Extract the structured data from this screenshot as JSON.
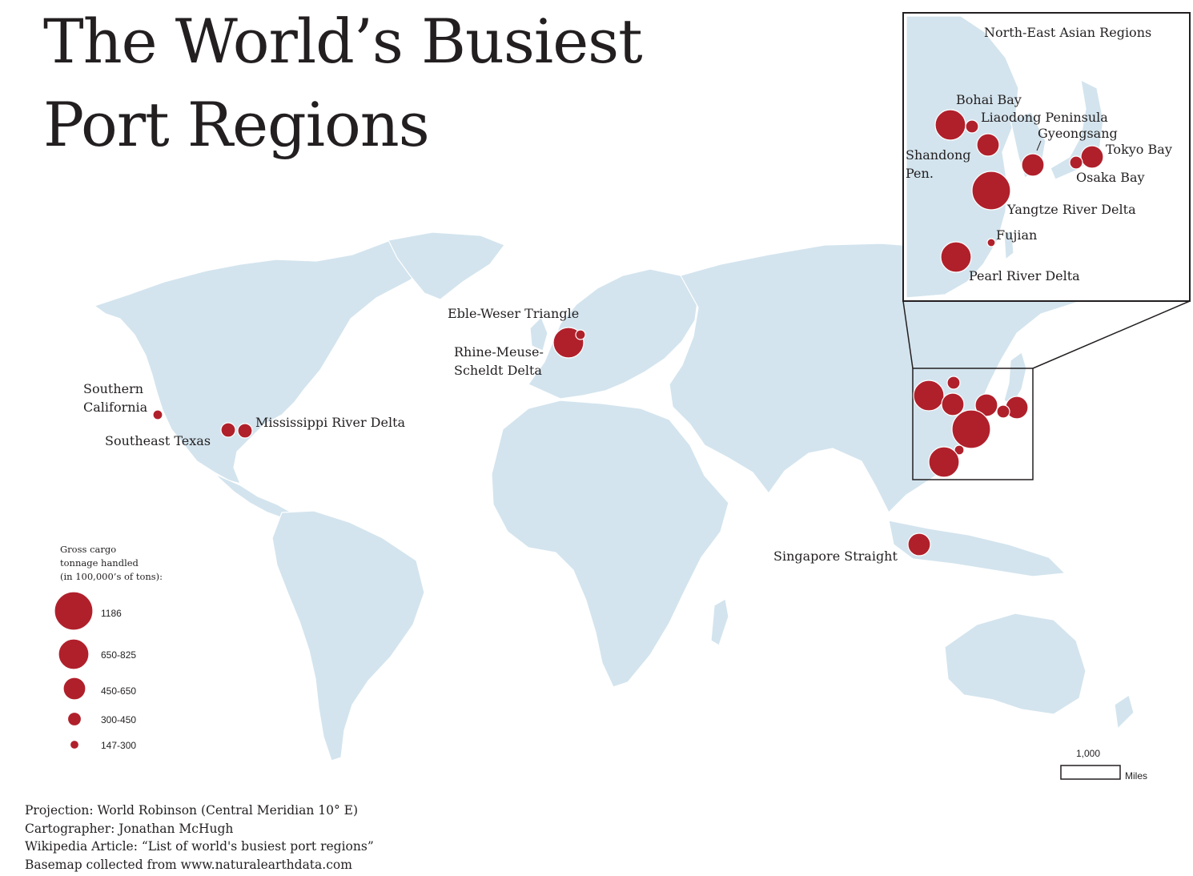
{
  "title": {
    "line1": "The World’s Busiest",
    "line2": "Port Regions"
  },
  "colors": {
    "land": "#d3e4ee",
    "port": "#b0202b",
    "text": "#231f20",
    "background": "#ffffff"
  },
  "ports": [
    {
      "name": "Southern California",
      "label_lines": [
        "Southern",
        "California"
      ],
      "class": "147-300"
    },
    {
      "name": "Southeast Texas",
      "label_lines": [
        "Southeast Texas"
      ],
      "class": "300-450"
    },
    {
      "name": "Mississippi River Delta",
      "label_lines": [
        "Mississippi River Delta"
      ],
      "class": "300-450"
    },
    {
      "name": "Eble-Weser Triangle",
      "label_lines": [
        "Eble-Weser Triangle"
      ],
      "class": "147-300"
    },
    {
      "name": "Rhine-Meuse-Scheldt Delta",
      "label_lines": [
        "Rhine-Meuse-",
        "Scheldt Delta"
      ],
      "class": "650-825"
    },
    {
      "name": "Singapore Straight",
      "label_lines": [
        "Singapore Straight"
      ],
      "class": "450-650"
    }
  ],
  "inset": {
    "title": "North-East Asian Regions",
    "ports": [
      {
        "name": "Bohai Bay",
        "label_lines": [
          "Bohai Bay"
        ],
        "class": "650-825"
      },
      {
        "name": "Liaodong Peninsula",
        "label_lines": [
          "Liaodong Peninsula"
        ],
        "class": "147-300"
      },
      {
        "name": "Shandong Pen.",
        "label_lines": [
          "Shandong",
          "Pen."
        ],
        "class": "450-650"
      },
      {
        "name": "Gyeongsang",
        "label_lines": [
          "Gyeongsang"
        ],
        "class": "450-650"
      },
      {
        "name": "Tokyo Bay",
        "label_lines": [
          "Tokyo Bay"
        ],
        "class": "450-650"
      },
      {
        "name": "Osaka Bay",
        "label_lines": [
          "Osaka Bay"
        ],
        "class": "147-300"
      },
      {
        "name": "Yangtze River Delta",
        "label_lines": [
          "Yangtze River Delta"
        ],
        "class": "1186"
      },
      {
        "name": "Fujian",
        "label_lines": [
          "Fujian"
        ],
        "class": "147-300"
      },
      {
        "name": "Pearl River Delta",
        "label_lines": [
          "Pearl River Delta"
        ],
        "class": "650-825"
      }
    ]
  },
  "legend": {
    "title_lines": [
      "Gross cargo",
      "tonnage handled",
      "(in 100,000’s of tons):"
    ],
    "classes": [
      "1186",
      "650-825",
      "450-650",
      "300-450",
      "147-300"
    ]
  },
  "scale_bar": {
    "value": "1,000",
    "unit": "Miles"
  },
  "credits": {
    "projection": "Projection: World Robinson (Central Meridian 10° E)",
    "cartographer": "Cartographer: Jonathan McHugh",
    "article": "Wikipedia Article: “List of world's busiest port regions”",
    "basemap": "Basemap collected from www.naturalearthdata.com"
  }
}
